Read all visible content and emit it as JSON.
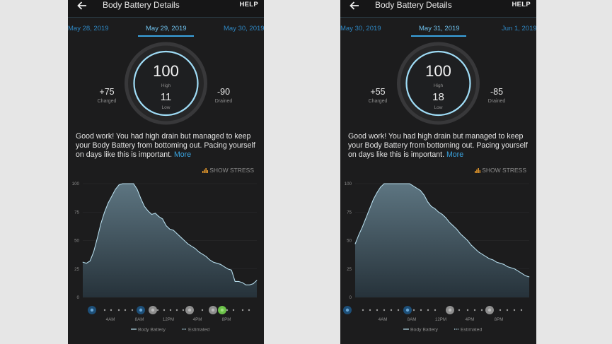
{
  "screens": [
    {
      "appbar": {
        "title": "Body Battery Details",
        "help": "HELP",
        "back_icon": "arrow-left-icon"
      },
      "dates": {
        "prev": "May 28, 2019",
        "current": "May 29, 2019",
        "next": "May 30, 2019"
      },
      "summary": {
        "high_value": "100",
        "high_label": "High",
        "low_value": "11",
        "low_label": "Low",
        "charged_value": "+75",
        "charged_label": "Charged",
        "drained_value": "-90",
        "drained_label": "Drained"
      },
      "message": {
        "text": "Good work! You had high drain but managed to keep your Body Battery from bottoming out. Pacing yourself on days like this is important.",
        "more": "More"
      },
      "show_stress": "SHOW STRESS",
      "chart_data": {
        "type": "area",
        "yticks": [
          "100",
          "75",
          "50",
          "25",
          "0"
        ],
        "ylim": [
          0,
          100
        ],
        "xlim": [
          0,
          24
        ],
        "xticks": [
          "4AM",
          "8AM",
          "12PM",
          "4PM",
          "8PM"
        ],
        "x": [
          0,
          0.5,
          1,
          1.5,
          2,
          2.5,
          3,
          3.5,
          4,
          4.5,
          5,
          5.5,
          6,
          6.5,
          7,
          7.5,
          8,
          8.5,
          9,
          9.5,
          10,
          10.5,
          11,
          11.5,
          12,
          12.5,
          13,
          13.5,
          14,
          14.5,
          15,
          15.5,
          16,
          16.5,
          17,
          17.5,
          18,
          18.5,
          19,
          19.5,
          20,
          20.5,
          21,
          21.5,
          22,
          22.5,
          23,
          23.5,
          24
        ],
        "values": [
          31,
          30,
          32,
          40,
          52,
          65,
          75,
          83,
          89,
          95,
          99,
          100,
          100,
          100,
          100,
          95,
          87,
          80,
          76,
          73,
          74,
          71,
          69,
          63,
          60,
          59,
          56,
          53,
          50,
          47,
          45,
          43,
          40,
          38,
          36,
          33,
          31,
          30,
          29,
          27,
          25,
          24,
          14,
          14,
          13,
          11,
          11,
          12,
          15
        ],
        "legend": [
          "Body Battery",
          "Estimated"
        ]
      },
      "timeline_icons": [
        "sleep-icon",
        "alarm-icon",
        "walk-icon",
        "walk-icon",
        "walk-icon",
        "run-icon"
      ]
    },
    {
      "appbar": {
        "title": "Body Battery Details",
        "help": "HELP",
        "back_icon": "arrow-left-icon"
      },
      "dates": {
        "prev": "May 30, 2019",
        "current": "May 31, 2019",
        "next": "Jun 1, 2019"
      },
      "summary": {
        "high_value": "100",
        "high_label": "High",
        "low_value": "18",
        "low_label": "Low",
        "charged_value": "+55",
        "charged_label": "Charged",
        "drained_value": "-85",
        "drained_label": "Drained"
      },
      "message": {
        "text": "Good work! You had high drain but managed to keep your Body Battery from bottoming out. Pacing yourself on days like this is important.",
        "more": "More"
      },
      "show_stress": "SHOW STRESS",
      "chart_data": {
        "type": "area",
        "yticks": [
          "100",
          "75",
          "50",
          "25",
          "0"
        ],
        "ylim": [
          0,
          100
        ],
        "xlim": [
          0,
          24
        ],
        "xticks": [
          "4AM",
          "8AM",
          "12PM",
          "4PM",
          "8PM"
        ],
        "x": [
          0,
          0.5,
          1,
          1.5,
          2,
          2.5,
          3,
          3.5,
          4,
          4.5,
          5,
          5.5,
          6,
          6.5,
          7,
          7.5,
          8,
          8.5,
          9,
          9.5,
          10,
          10.5,
          11,
          11.5,
          12,
          12.5,
          13,
          13.5,
          14,
          14.5,
          15,
          15.5,
          16,
          16.5,
          17,
          17.5,
          18,
          18.5,
          19,
          19.5,
          20,
          20.5,
          21,
          21.5,
          22,
          22.5,
          23,
          23.5,
          24
        ],
        "values": [
          47,
          55,
          62,
          70,
          78,
          86,
          92,
          97,
          100,
          100,
          100,
          100,
          100,
          100,
          100,
          100,
          98,
          96,
          94,
          90,
          84,
          80,
          78,
          75,
          73,
          70,
          66,
          63,
          60,
          56,
          53,
          50,
          46,
          43,
          40,
          38,
          36,
          34,
          33,
          31,
          30,
          29,
          27,
          26,
          25,
          23,
          21,
          19,
          18
        ],
        "legend": [
          "Body Battery",
          "Estimated"
        ]
      },
      "timeline_icons": [
        "sleep-icon",
        "alarm-icon",
        "walk-icon",
        "walk-icon"
      ]
    }
  ]
}
